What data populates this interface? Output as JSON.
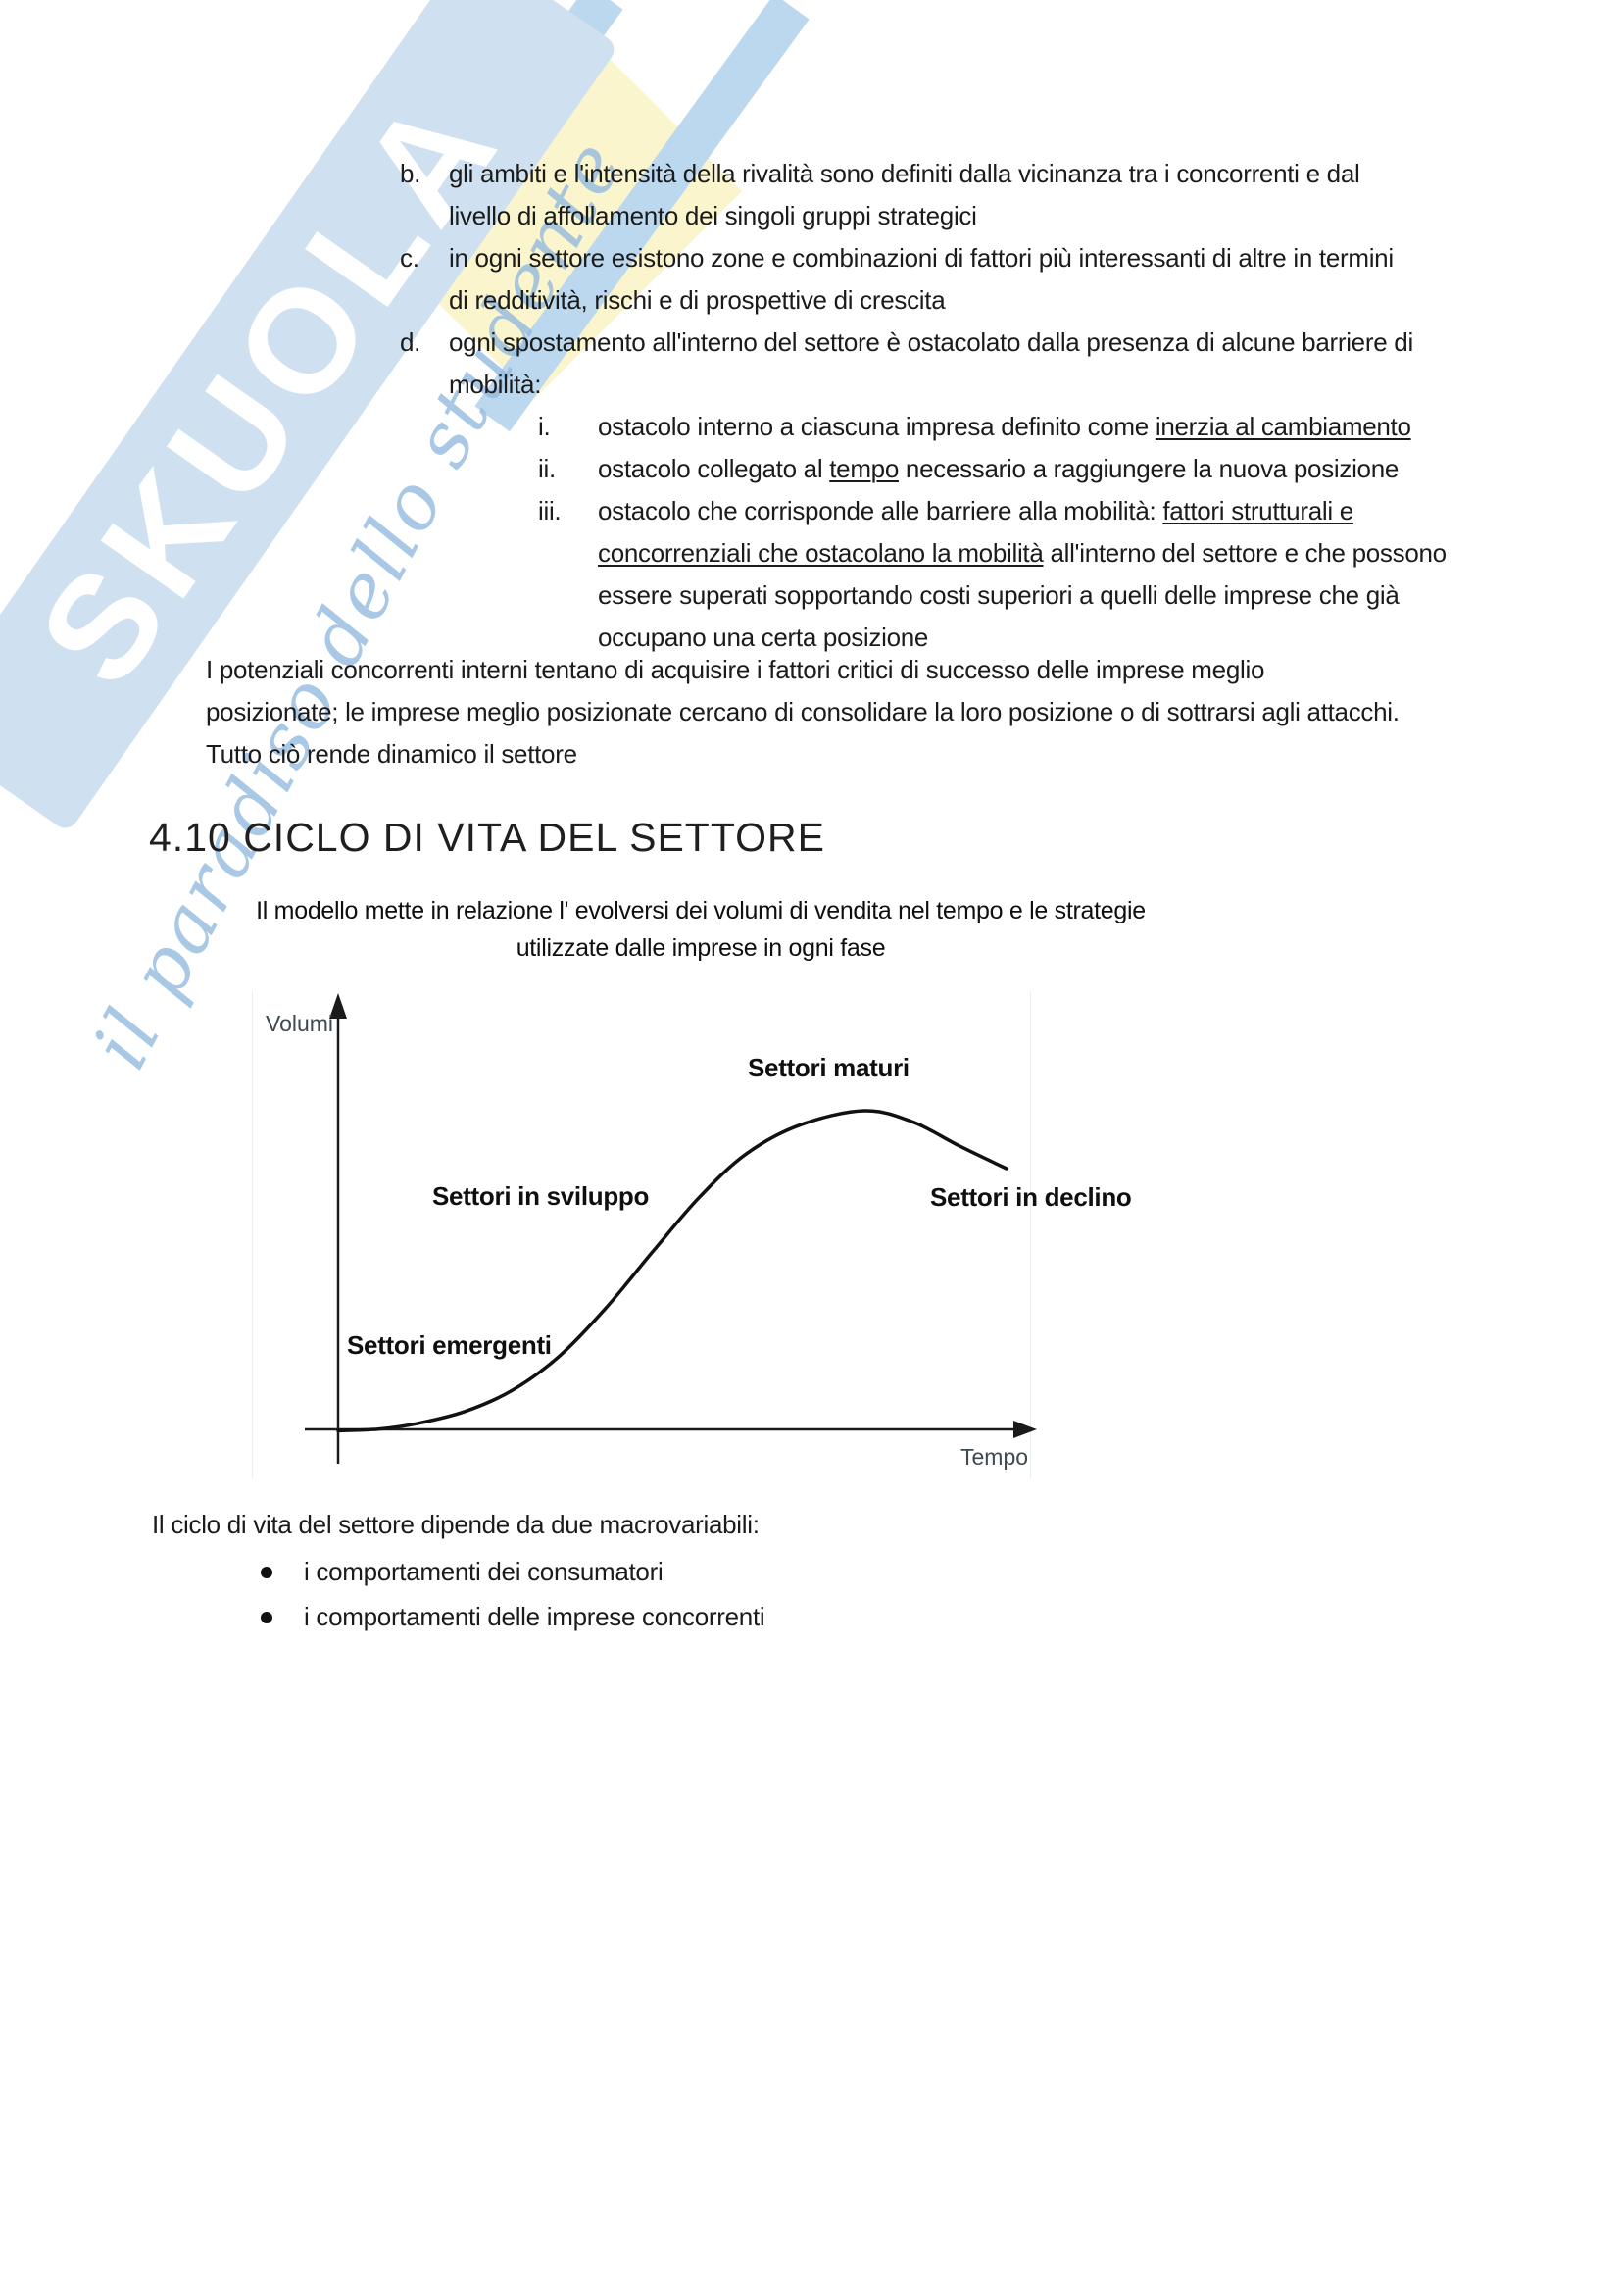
{
  "watermark": {
    "wordmark": "SKUOLA",
    "tagline": "il paradiso dello studente",
    "colors": {
      "band": "#cfe1f1",
      "stroke": "#bcd8ef",
      "diamond": "#faf5cd",
      "wordmark_text": "#ffffff",
      "script": "rgba(148,186,222,0.8)"
    }
  },
  "outline": [
    {
      "marker": "b.",
      "level": 1,
      "lines": [
        "gli ambiti e l'intensità della rivalità sono definiti dalla vicinanza tra i concorrenti e dal",
        "livello di affollamento dei singoli gruppi strategici"
      ]
    },
    {
      "marker": "c.",
      "level": 1,
      "lines": [
        "in ogni settore esistono zone e combinazioni di fattori più interessanti di altre in termini",
        "di redditività, rischi e di prospettive di crescita"
      ]
    },
    {
      "marker": "d.",
      "level": 1,
      "lines": [
        "ogni spostamento all'interno del settore è ostacolato dalla presenza di alcune barriere di",
        "mobilità:"
      ]
    },
    {
      "marker": "i.",
      "level": 2,
      "lines": [
        [
          {
            "t": "ostacolo interno a ciascuna impresa definito come "
          },
          {
            "t": "inerzia al cambiamento",
            "u": true
          }
        ]
      ]
    },
    {
      "marker": "ii.",
      "level": 2,
      "lines": [
        [
          {
            "t": "ostacolo collegato al "
          },
          {
            "t": "tempo",
            "u": true
          },
          {
            "t": " necessario a raggiungere la nuova posizione"
          }
        ]
      ]
    },
    {
      "marker": "iii.",
      "level": 2,
      "lines": [
        [
          {
            "t": "ostacolo che corrisponde alle barriere alla mobilità: "
          },
          {
            "t": "fattori strutturali e",
            "u": true
          }
        ],
        [
          {
            "t": "concorrenziali che ostacolano la mobilità",
            "u": true
          },
          {
            "t": " all'interno del settore e che possono"
          }
        ],
        [
          {
            "t": "essere superati sopportando costi superiori a quelli delle imprese che già"
          }
        ],
        [
          {
            "t": "occupano una certa posizione"
          }
        ]
      ]
    }
  ],
  "paragraph": {
    "lines": [
      "I potenziali concorrenti interni tentano di acquisire i fattori critici di successo delle imprese meglio",
      "posizionate; le imprese meglio posizionate cercano di consolidare la loro posizione o di sottrarsi agli attacchi.",
      "Tutto ciò rende dinamico il settore"
    ]
  },
  "section": {
    "heading": "4.10 CICLO DI VITA DEL SETTORE"
  },
  "figure": {
    "caption_lines": [
      "Il modello mette in relazione l' evolversi dei volumi di vendita nel tempo e le strategie",
      "utilizzate dalle imprese in ogni fase"
    ],
    "chart_data": {
      "type": "line",
      "xlabel": "Tempo",
      "ylabel": "Volumi",
      "x_range_norm": [
        0,
        1
      ],
      "y_range_norm": [
        0,
        1
      ],
      "grid": false,
      "ticks": "none",
      "series": [
        {
          "name": "Volumi di vendita nel tempo (ciclo di vita del settore)",
          "points_norm": [
            [
              0.0,
              0.005
            ],
            [
              0.06,
              0.01
            ],
            [
              0.12,
              0.028
            ],
            [
              0.19,
              0.065
            ],
            [
              0.26,
              0.13
            ],
            [
              0.33,
              0.235
            ],
            [
              0.4,
              0.385
            ],
            [
              0.47,
              0.56
            ],
            [
              0.54,
              0.73
            ],
            [
              0.61,
              0.865
            ],
            [
              0.69,
              0.955
            ],
            [
              0.787,
              1.0
            ],
            [
              0.86,
              0.965
            ],
            [
              0.93,
              0.89
            ],
            [
              1.0,
              0.82
            ]
          ]
        }
      ],
      "annotations": [
        {
          "text": "Settori emergenti",
          "position": "lower-left"
        },
        {
          "text": "Settori in sviluppo",
          "position": "mid-left"
        },
        {
          "text": "Settori maturi",
          "position": "top"
        },
        {
          "text": "Settori in declino",
          "position": "right-of-decline"
        }
      ]
    }
  },
  "footer": {
    "intro": "Il ciclo di vita del settore dipende da due macrovariabili:",
    "bullets": [
      "i comportamenti dei consumatori",
      "i comportamenti delle imprese concorrenti"
    ]
  }
}
